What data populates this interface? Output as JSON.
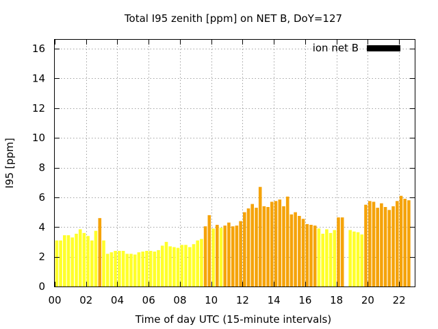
{
  "chart_data": {
    "type": "bar",
    "title": "Total I95 zenith [ppm] on NET B, DoY=127",
    "xlabel": "Time of day UTC (15-minute intervals)",
    "ylabel": "I95 [ppm]",
    "xlim": [
      0,
      23
    ],
    "ylim": [
      0,
      16.6
    ],
    "x_ticks": [
      0,
      2,
      4,
      6,
      8,
      10,
      12,
      14,
      16,
      18,
      20,
      22
    ],
    "x_tick_labels": [
      "00",
      "02",
      "04",
      "06",
      "08",
      "10",
      "12",
      "14",
      "16",
      "18",
      "20",
      "22"
    ],
    "y_ticks": [
      0,
      2,
      4,
      6,
      8,
      10,
      12,
      14,
      16
    ],
    "y_tick_labels": [
      "0",
      "2",
      "4",
      "6",
      "8",
      "10",
      "12",
      "14",
      "16"
    ],
    "grid": true,
    "legend": {
      "label": "ion net B",
      "color": "#000000",
      "position": "top-right"
    },
    "bar_width_hours": 0.2,
    "colors": {
      "low": "#ffff2a",
      "high": "#f5a30a"
    },
    "bars": [
      {
        "x": 0.125,
        "value": 3.1,
        "level": "low"
      },
      {
        "x": 0.375,
        "value": 3.1,
        "level": "low"
      },
      {
        "x": 0.625,
        "value": 3.45,
        "level": "low"
      },
      {
        "x": 0.875,
        "value": 3.45,
        "level": "low"
      },
      {
        "x": 1.125,
        "value": 3.3,
        "level": "low"
      },
      {
        "x": 1.375,
        "value": 3.55,
        "level": "low"
      },
      {
        "x": 1.625,
        "value": 3.85,
        "level": "low"
      },
      {
        "x": 1.875,
        "value": 3.6,
        "level": "low"
      },
      {
        "x": 2.125,
        "value": 3.4,
        "level": "low"
      },
      {
        "x": 2.375,
        "value": 3.1,
        "level": "low"
      },
      {
        "x": 2.625,
        "value": 3.75,
        "level": "low"
      },
      {
        "x": 2.875,
        "value": 4.6,
        "level": "high"
      },
      {
        "x": 3.125,
        "value": 3.1,
        "level": "low"
      },
      {
        "x": 3.375,
        "value": 2.2,
        "level": "low"
      },
      {
        "x": 3.625,
        "value": 2.3,
        "level": "low"
      },
      {
        "x": 3.875,
        "value": 2.4,
        "level": "low"
      },
      {
        "x": 4.125,
        "value": 2.4,
        "level": "low"
      },
      {
        "x": 4.375,
        "value": 2.4,
        "level": "low"
      },
      {
        "x": 4.625,
        "value": 2.2,
        "level": "low"
      },
      {
        "x": 4.875,
        "value": 2.2,
        "level": "low"
      },
      {
        "x": 5.125,
        "value": 2.15,
        "level": "low"
      },
      {
        "x": 5.375,
        "value": 2.3,
        "level": "low"
      },
      {
        "x": 5.625,
        "value": 2.35,
        "level": "low"
      },
      {
        "x": 5.875,
        "value": 2.4,
        "level": "low"
      },
      {
        "x": 6.125,
        "value": 2.4,
        "level": "low"
      },
      {
        "x": 6.375,
        "value": 2.35,
        "level": "low"
      },
      {
        "x": 6.625,
        "value": 2.45,
        "level": "low"
      },
      {
        "x": 6.875,
        "value": 2.75,
        "level": "low"
      },
      {
        "x": 7.125,
        "value": 3.0,
        "level": "low"
      },
      {
        "x": 7.375,
        "value": 2.7,
        "level": "low"
      },
      {
        "x": 7.625,
        "value": 2.65,
        "level": "low"
      },
      {
        "x": 7.875,
        "value": 2.6,
        "level": "low"
      },
      {
        "x": 8.125,
        "value": 2.8,
        "level": "low"
      },
      {
        "x": 8.375,
        "value": 2.8,
        "level": "low"
      },
      {
        "x": 8.625,
        "value": 2.65,
        "level": "low"
      },
      {
        "x": 8.875,
        "value": 2.85,
        "level": "low"
      },
      {
        "x": 9.125,
        "value": 3.1,
        "level": "low"
      },
      {
        "x": 9.375,
        "value": 3.2,
        "level": "low"
      },
      {
        "x": 9.625,
        "value": 4.05,
        "level": "high"
      },
      {
        "x": 9.875,
        "value": 4.8,
        "level": "high"
      },
      {
        "x": 10.125,
        "value": 3.9,
        "level": "low"
      },
      {
        "x": 10.375,
        "value": 4.15,
        "level": "high"
      },
      {
        "x": 10.625,
        "value": 3.95,
        "level": "low"
      },
      {
        "x": 10.875,
        "value": 4.1,
        "level": "high"
      },
      {
        "x": 11.125,
        "value": 4.3,
        "level": "high"
      },
      {
        "x": 11.375,
        "value": 4.05,
        "level": "high"
      },
      {
        "x": 11.625,
        "value": 4.1,
        "level": "high"
      },
      {
        "x": 11.875,
        "value": 4.4,
        "level": "high"
      },
      {
        "x": 12.125,
        "value": 5.0,
        "level": "high"
      },
      {
        "x": 12.375,
        "value": 5.25,
        "level": "high"
      },
      {
        "x": 12.625,
        "value": 5.55,
        "level": "high"
      },
      {
        "x": 12.875,
        "value": 5.3,
        "level": "high"
      },
      {
        "x": 13.125,
        "value": 6.7,
        "level": "high"
      },
      {
        "x": 13.375,
        "value": 5.4,
        "level": "high"
      },
      {
        "x": 13.625,
        "value": 5.35,
        "level": "high"
      },
      {
        "x": 13.875,
        "value": 5.7,
        "level": "high"
      },
      {
        "x": 14.125,
        "value": 5.75,
        "level": "high"
      },
      {
        "x": 14.375,
        "value": 5.85,
        "level": "high"
      },
      {
        "x": 14.625,
        "value": 5.4,
        "level": "high"
      },
      {
        "x": 14.875,
        "value": 6.05,
        "level": "high"
      },
      {
        "x": 15.125,
        "value": 4.85,
        "level": "high"
      },
      {
        "x": 15.375,
        "value": 5.0,
        "level": "high"
      },
      {
        "x": 15.625,
        "value": 4.75,
        "level": "high"
      },
      {
        "x": 15.875,
        "value": 4.55,
        "level": "high"
      },
      {
        "x": 16.125,
        "value": 4.2,
        "level": "high"
      },
      {
        "x": 16.375,
        "value": 4.15,
        "level": "high"
      },
      {
        "x": 16.625,
        "value": 4.1,
        "level": "high"
      },
      {
        "x": 16.875,
        "value": 3.9,
        "level": "low"
      },
      {
        "x": 17.125,
        "value": 3.55,
        "level": "low"
      },
      {
        "x": 17.375,
        "value": 3.85,
        "level": "low"
      },
      {
        "x": 17.625,
        "value": 3.6,
        "level": "low"
      },
      {
        "x": 17.875,
        "value": 3.8,
        "level": "low"
      },
      {
        "x": 18.125,
        "value": 4.65,
        "level": "high"
      },
      {
        "x": 18.375,
        "value": 4.65,
        "level": "high"
      },
      {
        "x": 18.875,
        "value": 3.8,
        "level": "low"
      },
      {
        "x": 19.125,
        "value": 3.7,
        "level": "low"
      },
      {
        "x": 19.375,
        "value": 3.65,
        "level": "low"
      },
      {
        "x": 19.625,
        "value": 3.5,
        "level": "low"
      },
      {
        "x": 19.875,
        "value": 5.5,
        "level": "high"
      },
      {
        "x": 20.125,
        "value": 5.75,
        "level": "high"
      },
      {
        "x": 20.375,
        "value": 5.7,
        "level": "high"
      },
      {
        "x": 20.625,
        "value": 5.3,
        "level": "high"
      },
      {
        "x": 20.875,
        "value": 5.6,
        "level": "high"
      },
      {
        "x": 21.125,
        "value": 5.35,
        "level": "high"
      },
      {
        "x": 21.375,
        "value": 5.15,
        "level": "high"
      },
      {
        "x": 21.625,
        "value": 5.4,
        "level": "high"
      },
      {
        "x": 21.875,
        "value": 5.75,
        "level": "high"
      },
      {
        "x": 22.125,
        "value": 6.1,
        "level": "high"
      },
      {
        "x": 22.375,
        "value": 5.9,
        "level": "high"
      },
      {
        "x": 22.625,
        "value": 5.8,
        "level": "high"
      }
    ]
  }
}
